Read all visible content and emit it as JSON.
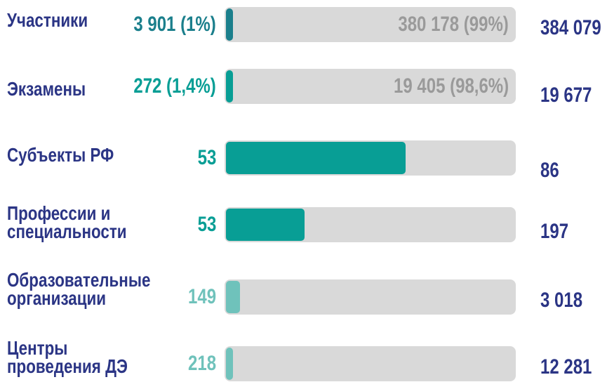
{
  "chart_data": {
    "type": "bar",
    "orientation": "horizontal",
    "categories": [
      "Участники",
      "Экзамены",
      "Субъекты РФ",
      "Профессии и\nспециальности",
      "Образовательные\nорганизации",
      "Центры\nпроведения ДЭ"
    ],
    "values": [
      3901,
      272,
      53,
      53,
      149,
      218
    ],
    "value_labels": [
      "3 901 (1%)",
      "272 (1,4%)",
      "53",
      "53",
      "149",
      "218"
    ],
    "remainder_values": [
      380178,
      19405,
      null,
      null,
      null,
      null
    ],
    "remainder_labels": [
      "380 178 (99%)",
      "19 405 (98,6%)",
      null,
      null,
      null,
      null
    ],
    "totals": [
      384079,
      19677,
      86,
      197,
      3018,
      12281
    ],
    "total_labels": [
      "384 079",
      "19 677",
      "86",
      "197",
      "3 018",
      "12 281"
    ],
    "colors": [
      "#1b7f8c",
      "#089e95",
      "#089e95",
      "#089e95",
      "#6fc2bb",
      "#6fc2bb"
    ],
    "track_color": "#d9d9d9",
    "text_color": "#2b3585",
    "remainder_color": "#9a9a9a"
  }
}
